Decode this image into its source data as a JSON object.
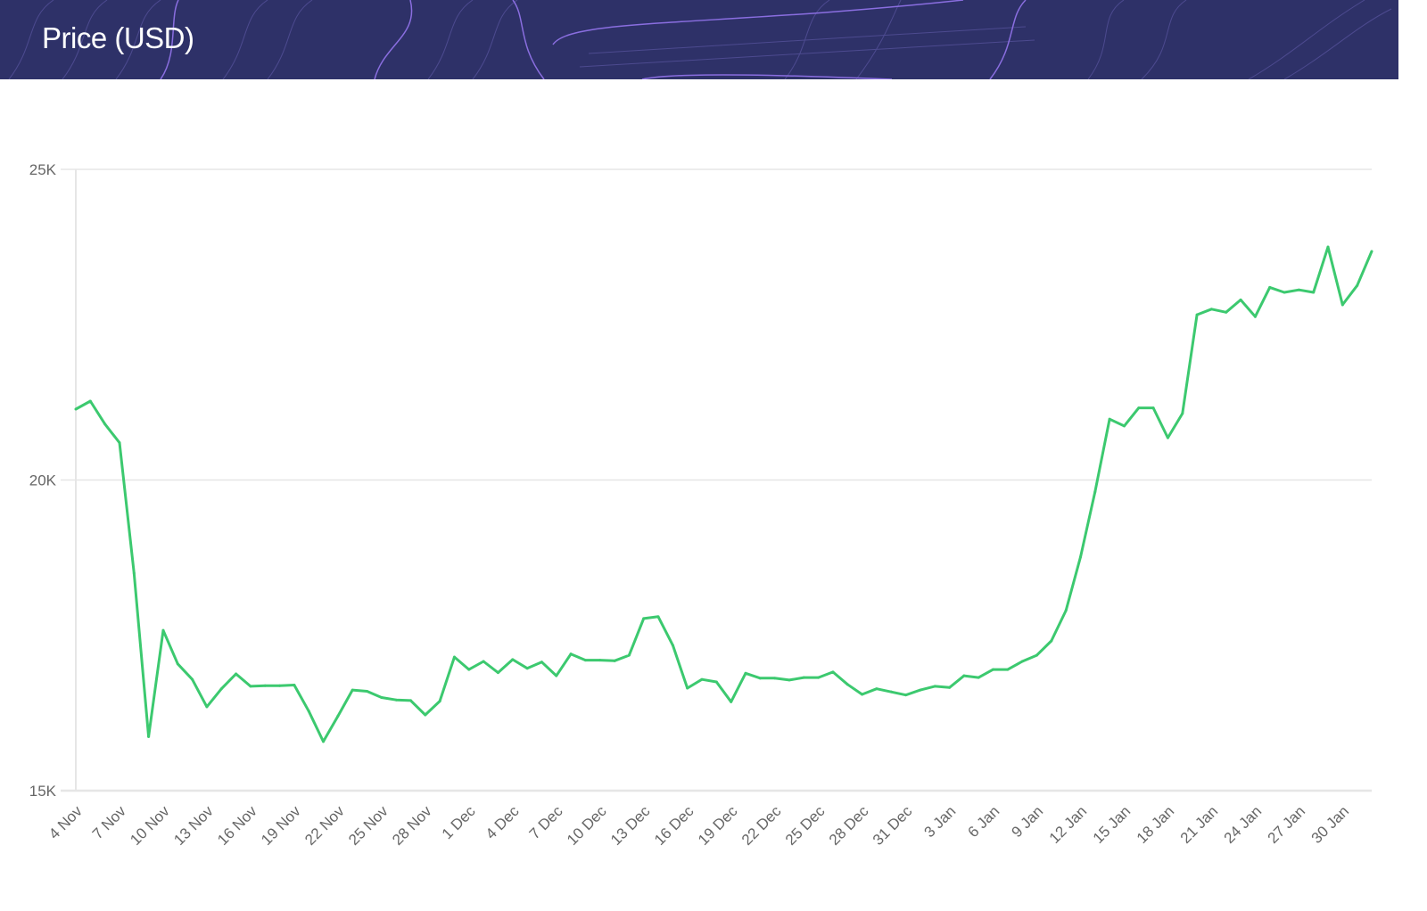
{
  "header": {
    "title": "Price (USD)"
  },
  "colors": {
    "header_bg": "#2e3168",
    "line": "#3cc96f",
    "grid": "#e6e6e6",
    "contour": "#7b63d6"
  },
  "chart_data": {
    "type": "line",
    "title": "Price (USD)",
    "xlabel": "",
    "ylabel": "",
    "ylim": [
      15000,
      25000
    ],
    "yticks": [
      15000,
      20000,
      25000
    ],
    "ytick_labels": [
      "15K",
      "20K",
      "25K"
    ],
    "grid": true,
    "start_date": "4 Nov",
    "xtick_every": 3,
    "xtick_labels": [
      "4 Nov",
      "7 Nov",
      "10 Nov",
      "13 Nov",
      "16 Nov",
      "19 Nov",
      "22 Nov",
      "25 Nov",
      "28 Nov",
      "1 Dec",
      "4 Dec",
      "7 Dec",
      "10 Dec",
      "13 Dec",
      "16 Dec",
      "19 Dec",
      "22 Dec",
      "25 Dec",
      "28 Dec",
      "31 Dec",
      "3 Jan",
      "6 Jan",
      "9 Jan",
      "12 Jan",
      "15 Jan",
      "18 Jan",
      "21 Jan",
      "24 Jan",
      "27 Jan",
      "30 Jan"
    ],
    "series": [
      {
        "name": "Price (USD)",
        "values": [
          21140,
          21270,
          20900,
          20600,
          18500,
          15870,
          17580,
          17040,
          16790,
          16350,
          16640,
          16880,
          16680,
          16690,
          16690,
          16700,
          16280,
          15790,
          16200,
          16620,
          16600,
          16500,
          16460,
          16450,
          16220,
          16440,
          17150,
          16950,
          17080,
          16900,
          17110,
          16970,
          17070,
          16850,
          17200,
          17100,
          17100,
          17090,
          17180,
          17770,
          17800,
          17340,
          16650,
          16790,
          16750,
          16430,
          16890,
          16810,
          16810,
          16780,
          16820,
          16820,
          16910,
          16710,
          16550,
          16640,
          16590,
          16540,
          16620,
          16680,
          16660,
          16850,
          16820,
          16950,
          16950,
          17080,
          17180,
          17410,
          17900,
          18760,
          19810,
          20980,
          20870,
          21160,
          21160,
          20680,
          21070,
          22660,
          22750,
          22700,
          22900,
          22630,
          23100,
          23020,
          23060,
          23020,
          23750,
          22820,
          23130,
          23680
        ]
      }
    ]
  }
}
